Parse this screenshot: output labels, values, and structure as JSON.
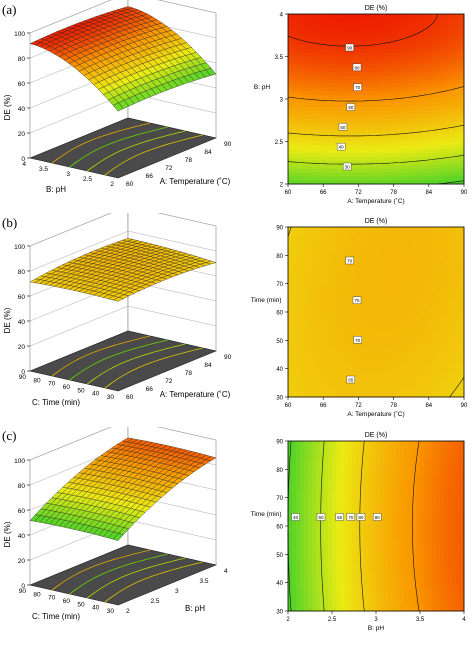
{
  "panels": [
    {
      "label": "(a)",
      "surface": {
        "zlabel": "DE (%)",
        "zticks": [
          "0",
          "20",
          "40",
          "60",
          "80",
          "100"
        ],
        "xlabel": "A: Temperature (˚C)",
        "xticks": [
          "60",
          "66",
          "72",
          "78",
          "84",
          "90"
        ],
        "ylabel": "B: pH",
        "yticks": [
          "2",
          "2.5",
          "3",
          "3.5",
          "4"
        ]
      },
      "contour": {
        "title": "DE (%)",
        "xlabel": "A: Temperature (˚C)",
        "xticks": [
          "60",
          "66",
          "72",
          "78",
          "84",
          "90"
        ],
        "ylabel": "B: pH",
        "yticks": [
          "2",
          "2.5",
          "3",
          "3.5",
          "4"
        ],
        "contour_labels": [
          "90",
          "80",
          "70",
          "60",
          "50",
          "40",
          "30"
        ]
      }
    },
    {
      "label": "(b)",
      "surface": {
        "zlabel": "DE (%)",
        "zticks": [
          "0",
          "20",
          "40",
          "60",
          "80",
          "100"
        ],
        "xlabel": "A: Temperature (˚C)",
        "xticks": [
          "60",
          "66",
          "72",
          "78",
          "84",
          "90"
        ],
        "ylabel": "C: Time (min)",
        "yticks": [
          "30",
          "40",
          "50",
          "60",
          "70",
          "80",
          "90"
        ]
      },
      "contour": {
        "title": "DE (%)",
        "xlabel": "A: Temperature (˚C)",
        "xticks": [
          "60",
          "66",
          "72",
          "78",
          "84",
          "90"
        ],
        "ylabel": "C: Time (min)",
        "yticks": [
          "30",
          "40",
          "50",
          "60",
          "70",
          "80",
          "90"
        ],
        "contour_labels": [
          "70",
          "75",
          "70",
          "65"
        ]
      }
    },
    {
      "label": "(c)",
      "surface": {
        "zlabel": "DE (%)",
        "zticks": [
          "0",
          "20",
          "40",
          "60",
          "80",
          "100"
        ],
        "xlabel": "B: pH",
        "xticks": [
          "2",
          "2.5",
          "3",
          "3.5",
          "4"
        ],
        "ylabel": "C: Time (min)",
        "yticks": [
          "30",
          "40",
          "50",
          "60",
          "70",
          "80",
          "90"
        ]
      },
      "contour": {
        "title": "DE (%)",
        "xlabel": "B: pH",
        "xticks": [
          "2",
          "2.5",
          "3",
          "3.5",
          "4"
        ],
        "ylabel": "C: Time (min)",
        "yticks": [
          "30",
          "40",
          "50",
          "60",
          "70",
          "80",
          "90"
        ],
        "contour_labels": [
          "40",
          "50",
          "60",
          "70",
          "80",
          "90"
        ]
      }
    }
  ],
  "chart_data": [
    {
      "type": "surface",
      "panel": "(a)",
      "title": "",
      "x_name": "A: Temperature (˚C)",
      "y_name": "B: pH",
      "z_name": "DE (%)",
      "xlim": [
        60,
        90
      ],
      "ylim": [
        2,
        4
      ],
      "zlim": [
        0,
        100
      ]
    },
    {
      "type": "contour",
      "panel": "(a)",
      "title": "DE (%)",
      "xlabel": "A: Temperature (˚C)",
      "ylabel": "B: pH",
      "xlim": [
        60,
        90
      ],
      "ylim": [
        2,
        4
      ],
      "levels": [
        90,
        80,
        70,
        60,
        50,
        40,
        30
      ]
    },
    {
      "type": "surface",
      "panel": "(b)",
      "title": "",
      "x_name": "A: Temperature (˚C)",
      "y_name": "C: Time (min)",
      "z_name": "DE (%)",
      "xlim": [
        60,
        90
      ],
      "ylim": [
        30,
        90
      ],
      "zlim": [
        0,
        100
      ]
    },
    {
      "type": "contour",
      "panel": "(b)",
      "title": "DE (%)",
      "xlabel": "A: Temperature (˚C)",
      "ylabel": "C: Time (min)",
      "xlim": [
        60,
        90
      ],
      "ylim": [
        30,
        90
      ],
      "levels": [
        75,
        70,
        65
      ]
    },
    {
      "type": "surface",
      "panel": "(c)",
      "title": "",
      "x_name": "B: pH",
      "y_name": "C: Time (min)",
      "z_name": "DE (%)",
      "xlim": [
        2,
        4
      ],
      "ylim": [
        30,
        90
      ],
      "zlim": [
        0,
        100
      ]
    },
    {
      "type": "contour",
      "panel": "(c)",
      "title": "DE (%)",
      "xlabel": "B: pH",
      "ylabel": "C: Time (min)",
      "xlim": [
        2,
        4
      ],
      "ylim": [
        30,
        90
      ],
      "levels": [
        40,
        50,
        60,
        70,
        80,
        90
      ]
    }
  ]
}
